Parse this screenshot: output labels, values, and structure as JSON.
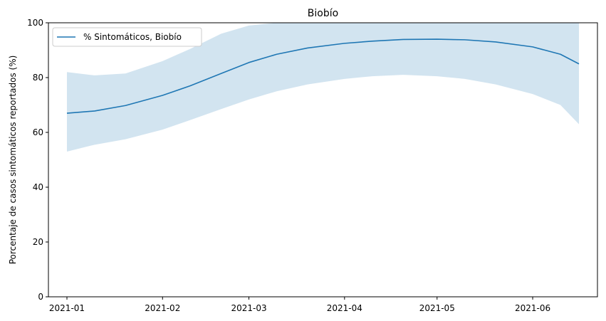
{
  "chart_data": {
    "type": "line",
    "title": "Biobío",
    "xlabel": "",
    "ylabel": "Porcentaje de casos sintomáticos reportados (%)",
    "ylim": [
      0,
      100
    ],
    "xlim": [
      "2020-12-26",
      "2021-06-22"
    ],
    "y_ticks": [
      0,
      20,
      40,
      60,
      80,
      100
    ],
    "x_ticks": [
      "2021-01",
      "2021-02",
      "2021-03",
      "2021-04",
      "2021-05",
      "2021-06"
    ],
    "x_tick_dates": [
      "2021-01-01",
      "2021-02-01",
      "2021-03-01",
      "2021-04-01",
      "2021-05-01",
      "2021-06-01"
    ],
    "grid": false,
    "legend_position": "top-left",
    "series": [
      {
        "name": "% Sintomáticos, Biobío",
        "color": "#1f77b4",
        "band_color": "#1f77b4",
        "x": [
          "2021-01-01",
          "2021-01-10",
          "2021-01-20",
          "2021-02-01",
          "2021-02-10",
          "2021-02-20",
          "2021-03-01",
          "2021-03-10",
          "2021-03-20",
          "2021-04-01",
          "2021-04-10",
          "2021-04-20",
          "2021-05-01",
          "2021-05-10",
          "2021-05-20",
          "2021-06-01",
          "2021-06-10",
          "2021-06-16"
        ],
        "y": [
          67.0,
          67.8,
          69.8,
          73.5,
          77.0,
          81.5,
          85.5,
          88.5,
          90.8,
          92.5,
          93.3,
          93.9,
          94.0,
          93.8,
          93.0,
          91.2,
          88.5,
          85.0
        ],
        "lower": [
          53.0,
          55.5,
          57.5,
          61.0,
          64.5,
          68.5,
          72.0,
          75.0,
          77.5,
          79.5,
          80.5,
          81.0,
          80.5,
          79.5,
          77.5,
          74.0,
          70.0,
          63.0
        ],
        "upper": [
          82.0,
          80.8,
          81.5,
          86.0,
          90.5,
          96.0,
          99.0,
          100.0,
          100.0,
          100.0,
          100.0,
          100.0,
          100.0,
          100.0,
          100.0,
          100.0,
          100.0,
          100.0
        ]
      }
    ]
  }
}
